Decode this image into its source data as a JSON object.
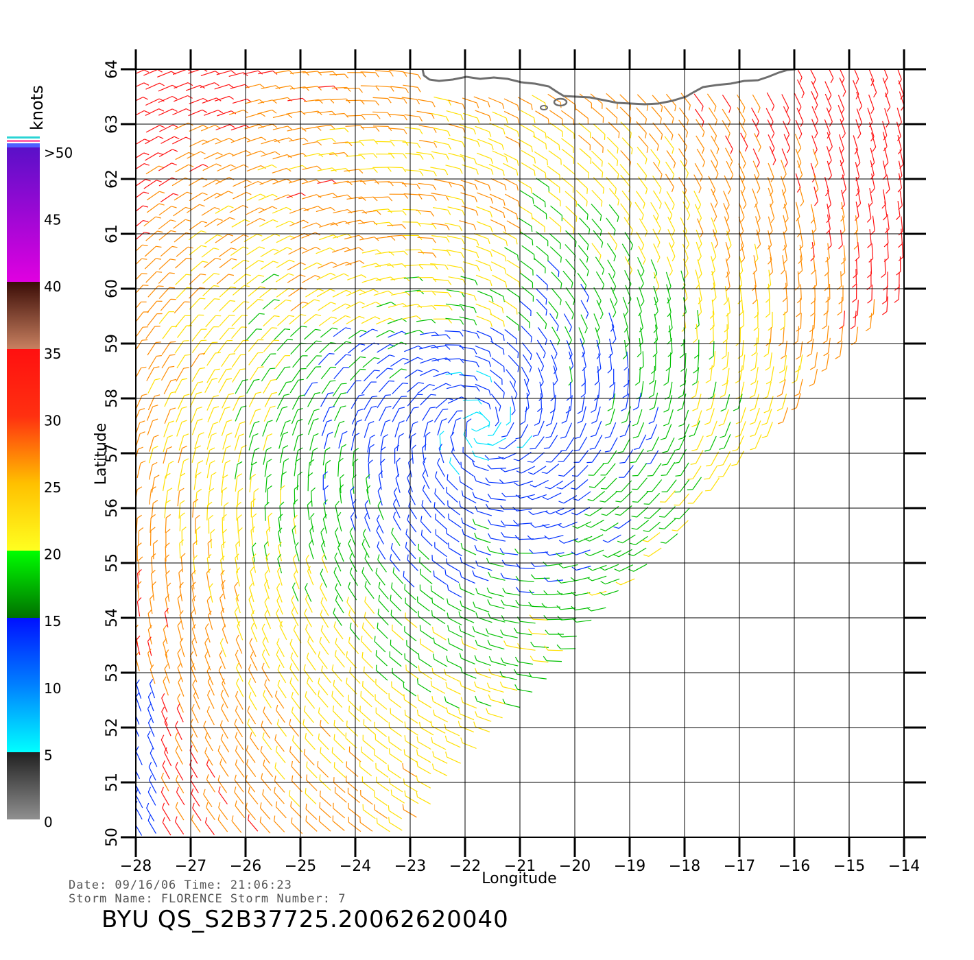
{
  "map": {
    "lon_ticks": [
      "−28",
      "−27",
      "−26",
      "−25",
      "−24",
      "−23",
      "−22",
      "−21",
      "−20",
      "−19",
      "−18",
      "−17",
      "−16",
      "−15",
      "−14"
    ],
    "lat_ticks": [
      "50",
      "51",
      "52",
      "53",
      "54",
      "55",
      "56",
      "57",
      "58",
      "59",
      "60",
      "61",
      "62",
      "63",
      "64"
    ],
    "lon_range": [
      -28,
      -14
    ],
    "lat_range": [
      50,
      64
    ],
    "xlabel": "Longitude",
    "ylabel": "Latitude",
    "grid": true,
    "coastline": "Iceland south coast (grey outline, top)",
    "wind_field": "wind barbs colored by speed"
  },
  "scale": {
    "title": "knots",
    "labels": [
      ">50",
      "45",
      "40",
      "35",
      "30",
      "25",
      "20",
      "15",
      "10",
      "5",
      "0"
    ],
    "colors": {
      "over50": "#6a0dcc",
      "v45": "#cc00cc",
      "v40": "#5a1a10",
      "v35": "#c87858",
      "v30": "#ff1010",
      "v25": "#ff8c00",
      "v20": "#ffe000",
      "v15": "#00c000",
      "v10": "#0030ff",
      "v5": "#00e5ff",
      "v0": "#808080"
    }
  },
  "meta": {
    "date_line": "Date: 09/16/06   Time: 21:06:23",
    "storm_line": "Storm Name: FLORENCE   Storm Number: 7",
    "file_line": "BYU QS_S2B37725.20062620040"
  }
}
